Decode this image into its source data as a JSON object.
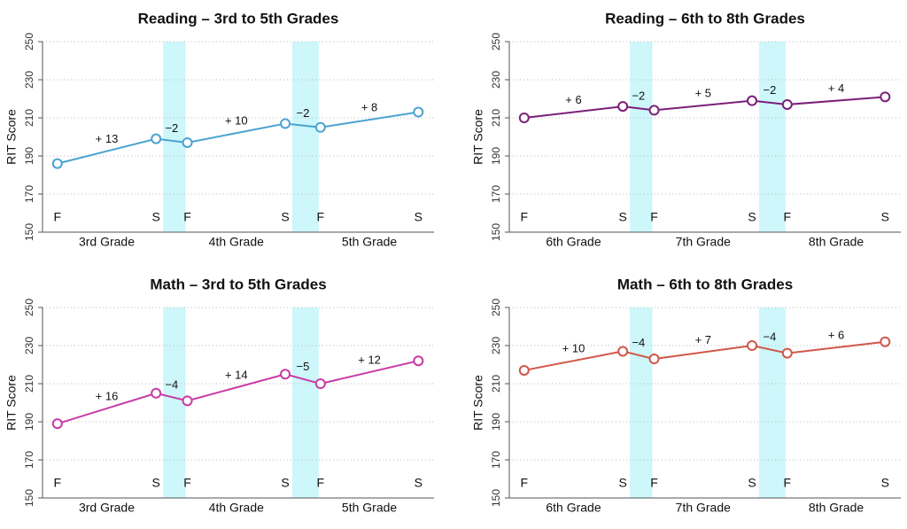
{
  "chart_data": [
    {
      "type": "line",
      "title": "Reading – 3rd to 5th Grades",
      "ylabel": "RIT Score",
      "categories": [
        "F",
        "S",
        "F",
        "S",
        "F",
        "S"
      ],
      "groups": [
        "3rd Grade",
        "4th Grade",
        "5th Grade"
      ],
      "values": [
        186,
        199,
        197,
        207,
        205,
        213
      ],
      "color": "#4aa3d0",
      "annotations": [
        "+ 13",
        "−2",
        "+ 10",
        "−2",
        "+ 8"
      ],
      "ylim": [
        150,
        250
      ],
      "yticks": [
        150,
        170,
        190,
        210,
        230,
        250
      ],
      "grid": true
    },
    {
      "type": "line",
      "title": "Reading – 6th to 8th Grades",
      "ylabel": "RIT Score",
      "categories": [
        "F",
        "S",
        "F",
        "S",
        "F",
        "S"
      ],
      "groups": [
        "6th Grade",
        "7th Grade",
        "8th Grade"
      ],
      "values": [
        210,
        216,
        214,
        219,
        217,
        221
      ],
      "color": "#7b1f7b",
      "annotations": [
        "+ 6",
        "−2",
        "+ 5",
        "−2",
        "+ 4"
      ],
      "ylim": [
        150,
        250
      ],
      "yticks": [
        150,
        170,
        190,
        210,
        230,
        250
      ],
      "grid": true
    },
    {
      "type": "line",
      "title": "Math – 3rd to 5th Grades",
      "ylabel": "RIT Score",
      "categories": [
        "F",
        "S",
        "F",
        "S",
        "F",
        "S"
      ],
      "groups": [
        "3rd Grade",
        "4th Grade",
        "5th Grade"
      ],
      "values": [
        189,
        205,
        201,
        215,
        210,
        222
      ],
      "color": "#c83aa6",
      "annotations": [
        "+ 16",
        "−4",
        "+ 14",
        "−5",
        "+ 12"
      ],
      "ylim": [
        150,
        250
      ],
      "yticks": [
        150,
        170,
        190,
        210,
        230,
        250
      ],
      "grid": true
    },
    {
      "type": "line",
      "title": "Math – 6th to 8th Grades",
      "ylabel": "RIT Score",
      "categories": [
        "F",
        "S",
        "F",
        "S",
        "F",
        "S"
      ],
      "groups": [
        "6th Grade",
        "7th Grade",
        "8th Grade"
      ],
      "values": [
        217,
        227,
        223,
        230,
        226,
        232
      ],
      "color": "#d0574a",
      "annotations": [
        "+ 10",
        "−4",
        "+ 7",
        "−4",
        "+ 6"
      ],
      "ylim": [
        150,
        250
      ],
      "yticks": [
        150,
        170,
        190,
        210,
        230,
        250
      ],
      "grid": true
    }
  ]
}
